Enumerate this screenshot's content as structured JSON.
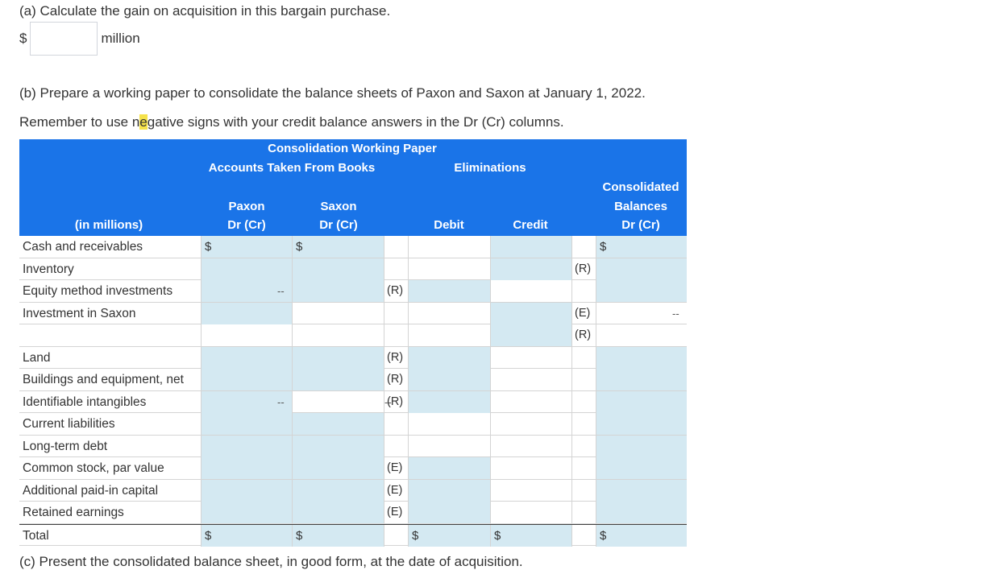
{
  "part_a": {
    "question": "(a) Calculate the gain on acquisition in this bargain purchase.",
    "currency": "$",
    "input_value": "",
    "unit": "million"
  },
  "part_b": {
    "question": "(b) Prepare a working paper to consolidate the balance sheets of Paxon and Saxon at January 1, 2022.",
    "instruction_pre": "Remember to use n",
    "instruction_hl": "e",
    "instruction_post": "gative signs with your credit balance answers in the Dr (Cr) columns."
  },
  "part_c": {
    "question": "(c) Present the consolidated balance sheet, in good form, at the date of acquisition."
  },
  "table": {
    "title": "Consolidation Working Paper",
    "group_books": "Accounts Taken From Books",
    "group_elim": "Eliminations",
    "col_label": "(in millions)",
    "col_paxon": [
      "Paxon",
      "Dr (Cr)"
    ],
    "col_saxon": [
      "Saxon",
      "Dr (Cr)"
    ],
    "col_debit": "Debit",
    "col_credit": "Credit",
    "col_consol": [
      "Consolidated",
      "Balances",
      "Dr (Cr)"
    ],
    "rows": [
      {
        "label": "Cash and receivables"
      },
      {
        "label": "Inventory"
      },
      {
        "label": "Equity method investments"
      },
      {
        "label": "Investment in Saxon"
      },
      {
        "label": ""
      },
      {
        "label": "Land"
      },
      {
        "label": "Buildings and equipment, net"
      },
      {
        "label": "Identifiable intangibles"
      },
      {
        "label": "Current liabilities"
      },
      {
        "label": "Long-term debt"
      },
      {
        "label": "Common stock, par value"
      },
      {
        "label": "Additional paid-in capital"
      },
      {
        "label": "Retained earnings"
      },
      {
        "label": "Total"
      }
    ],
    "marks": {
      "R": "(R)",
      "E": "(E)",
      "dash": "--",
      "dollar": "$"
    }
  }
}
